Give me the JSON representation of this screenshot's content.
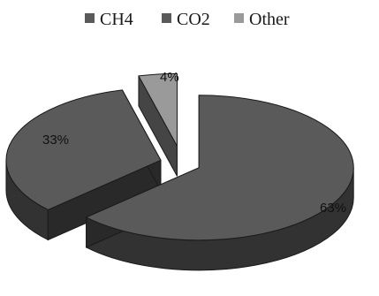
{
  "chart_data": {
    "type": "pie",
    "style": "3d-exploded",
    "categories": [
      "CH4",
      "CO2",
      "Other"
    ],
    "values": [
      63,
      33,
      4
    ],
    "value_labels": [
      "63%",
      "33%",
      "4%"
    ],
    "legend": {
      "placement": "top",
      "entries": [
        "CH4",
        "CO2",
        "Other"
      ]
    },
    "colors": {
      "CH4": "#5a5a5a",
      "CO2": "#5a5a5a",
      "Other": "#9a9a9a",
      "edge": "#1a1a1a"
    }
  }
}
